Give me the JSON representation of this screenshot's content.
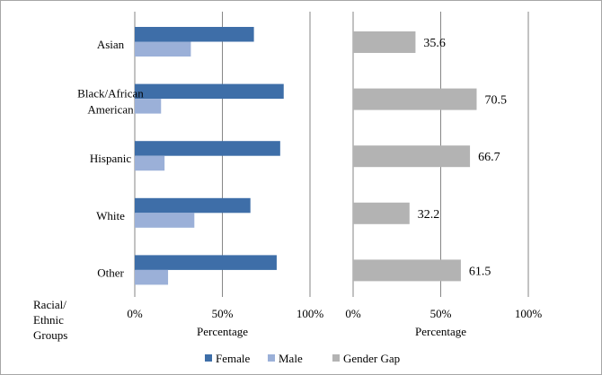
{
  "chart_data": [
    {
      "type": "bar",
      "orientation": "horizontal",
      "categories": [
        "Asian",
        "Black/African American",
        "Hispanic",
        "White",
        "Other"
      ],
      "category_lines": [
        [
          "Asian"
        ],
        [
          "Black/African",
          "American"
        ],
        [
          "Hispanic"
        ],
        [
          "White"
        ],
        [
          "Other"
        ]
      ],
      "category_axis_label_lines": [
        "Racial/",
        "Ethnic",
        "Groups"
      ],
      "series": [
        {
          "name": "Female",
          "color": "#3e6ea8",
          "values": [
            68,
            85,
            83,
            66,
            81
          ]
        },
        {
          "name": "Male",
          "color": "#9bb0d8",
          "values": [
            32,
            15,
            17,
            34,
            19
          ]
        }
      ],
      "xlim": [
        0,
        100
      ],
      "xticks": [
        "0%",
        "50%",
        "100%"
      ],
      "xlabel": "Percentage",
      "grid": true
    },
    {
      "type": "bar",
      "orientation": "horizontal",
      "categories": [
        "Asian",
        "Black/African American",
        "Hispanic",
        "White",
        "Other"
      ],
      "series": [
        {
          "name": "Gender Gap",
          "color": "#b3b3b3",
          "values": [
            35.6,
            70.5,
            66.7,
            32.2,
            61.5
          ],
          "labels": [
            "35.6",
            "70.5",
            "66.7",
            "32.2",
            "61.5"
          ]
        }
      ],
      "xlim": [
        0,
        100
      ],
      "xticks": [
        "0%",
        "50%",
        "100%"
      ],
      "xlabel": "Percentage",
      "grid": true
    }
  ],
  "legend": {
    "position": "bottom",
    "items": [
      {
        "label": "Female",
        "color": "#3e6ea8"
      },
      {
        "label": "Male",
        "color": "#9bb0d8"
      },
      {
        "label": "Gender Gap",
        "color": "#b3b3b3"
      }
    ]
  },
  "colors": {
    "grid": "#868686",
    "axis": "#868686"
  }
}
